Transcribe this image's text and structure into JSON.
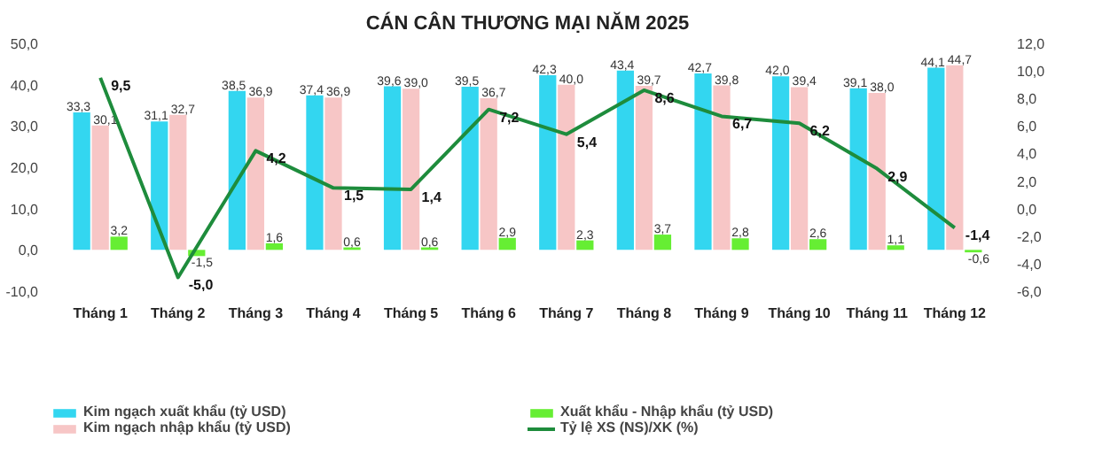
{
  "chart_data": {
    "type": "bar",
    "title": "CÁN CÂN THƯƠNG MẠI NĂM 2025",
    "categories": [
      "Tháng 1",
      "Tháng 2",
      "Tháng 3",
      "Tháng 4",
      "Tháng 5",
      "Tháng 6",
      "Tháng 7",
      "Tháng 8",
      "Tháng 9",
      "Tháng 10",
      "Tháng 11",
      "Tháng 12"
    ],
    "series": [
      {
        "name": "Kim ngạch xuất khẩu (tỷ USD)",
        "color": "#33d6f0",
        "values": [
          33.3,
          31.1,
          38.5,
          37.4,
          39.6,
          39.5,
          42.3,
          43.4,
          42.7,
          42.0,
          39.1,
          44.1
        ],
        "value_labels": [
          "33,3",
          "31,1",
          "38,5",
          "37,4",
          "39,6",
          "39,5",
          "42,3",
          "43,4",
          "42,7",
          "42,0",
          "39,1",
          "44,1"
        ]
      },
      {
        "name": "Kim ngạch nhập khẩu (tỷ USD)",
        "color": "#f7c6c6",
        "values": [
          30.1,
          32.7,
          36.9,
          36.9,
          39.0,
          36.7,
          40.0,
          39.7,
          39.8,
          39.4,
          38.0,
          44.7
        ],
        "value_labels": [
          "30,1",
          "32,7",
          "36,9",
          "36,9",
          "39,0",
          "36,7",
          "40,0",
          "39,7",
          "39,8",
          "39,4",
          "38,0",
          "44,7"
        ]
      },
      {
        "name": "Xuất khẩu - Nhập khẩu (tỷ USD)",
        "color": "#66ee33",
        "values": [
          3.2,
          -1.5,
          1.6,
          0.6,
          0.6,
          2.9,
          2.3,
          3.7,
          2.8,
          2.6,
          1.1,
          -0.6
        ],
        "value_labels": [
          "3,2",
          "-1,5",
          "1,6",
          "0,6",
          "0,6",
          "2,9",
          "2,3",
          "3,7",
          "2,8",
          "2,6",
          "1,1",
          "-0,6"
        ]
      },
      {
        "name": "Tỷ lệ XS (NS)/XK (%)",
        "type": "line",
        "axis": "y2",
        "color": "#1e8c3c",
        "values": [
          9.5,
          -5.0,
          4.2,
          1.5,
          1.4,
          7.2,
          5.4,
          8.6,
          6.7,
          6.2,
          2.9,
          -1.4
        ],
        "value_labels": [
          "9,5",
          "-5,0",
          "4,2",
          "1,5",
          "1,4",
          "7,2",
          "5,4",
          "8,6",
          "6,7",
          "6,2",
          "2,9",
          "-1,4"
        ]
      }
    ],
    "ylim": [
      -10,
      50
    ],
    "yticks": [
      {
        "value": -10,
        "label": "-10,0"
      },
      {
        "value": 0,
        "label": "0,0"
      },
      {
        "value": 10,
        "label": "10,0"
      },
      {
        "value": 20,
        "label": "20,0"
      },
      {
        "value": 30,
        "label": "30,0"
      },
      {
        "value": 40,
        "label": "40,0"
      },
      {
        "value": 50,
        "label": "50,0"
      }
    ],
    "y2lim": [
      -6,
      12
    ],
    "y2ticks": [
      {
        "value": -6,
        "label": "-6,0"
      },
      {
        "value": -4,
        "label": "-4,0"
      },
      {
        "value": -2,
        "label": "-2,0"
      },
      {
        "value": 0,
        "label": "0,0"
      },
      {
        "value": 2,
        "label": "2,0"
      },
      {
        "value": 4,
        "label": "4,0"
      },
      {
        "value": 6,
        "label": "6,0"
      },
      {
        "value": 8,
        "label": "8,0"
      },
      {
        "value": 10,
        "label": "10,0"
      },
      {
        "value": 12,
        "label": "12,0"
      }
    ],
    "legend": "bottom",
    "grid": false,
    "marker": "none",
    "line_style": "solid"
  }
}
